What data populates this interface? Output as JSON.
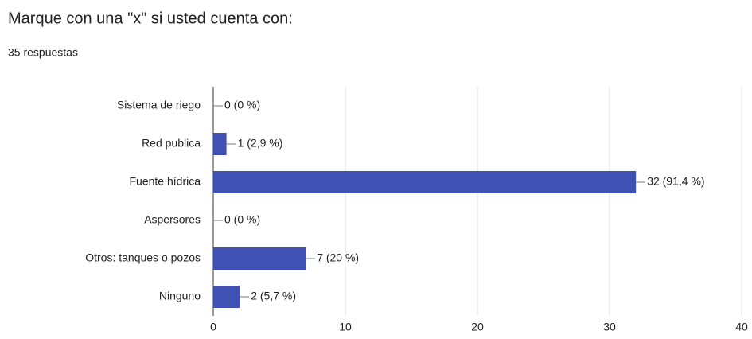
{
  "chart_data": {
    "type": "hbar",
    "title": "Marque con una \"x\" si usted cuenta con:",
    "subtitle": "35 respuestas",
    "categories": [
      "Sistema de riego",
      "Red publica",
      "Fuente hídrica",
      "Aspersores",
      "Otros: tanques o pozos",
      "Ninguno"
    ],
    "values": [
      0,
      1,
      32,
      0,
      7,
      2
    ],
    "value_labels": [
      "0 (0 %)",
      "1 (2,9 %)",
      "32 (91,4 %)",
      "0 (0 %)",
      "7 (20 %)",
      "2 (5,7 %)"
    ],
    "color": "#3f51b5",
    "xlim": [
      0,
      40
    ],
    "xticks": [
      0,
      10,
      20,
      30,
      40
    ],
    "grid": true
  }
}
